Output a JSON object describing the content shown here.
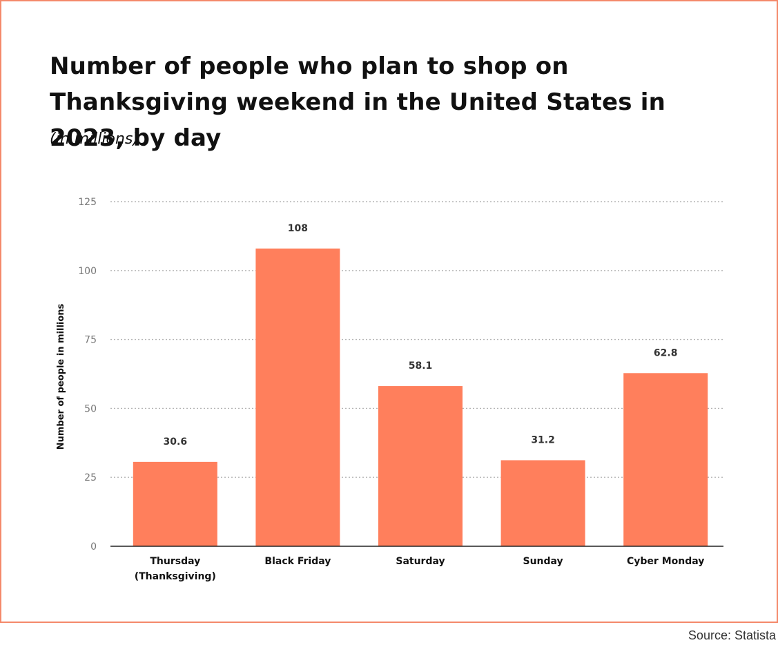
{
  "chart_data": {
    "type": "bar",
    "title": "Number of people who plan to shop on Thanksgiving weekend in the United States in 2023, by day",
    "subtitle": "(in millions)",
    "ylabel": "Number of people in millions",
    "xlabel": "",
    "categories": [
      "Thursday\n(Thanksgiving)",
      "Black Friday",
      "Saturday",
      "Sunday",
      "Cyber Monday"
    ],
    "values": [
      30.6,
      108,
      58.1,
      31.2,
      62.8
    ],
    "value_labels": [
      "30.6",
      "108",
      "58.1",
      "31.2",
      "62.8"
    ],
    "yticks": [
      0,
      25,
      50,
      75,
      100,
      125
    ],
    "ylim": [
      0,
      125
    ],
    "grid": true,
    "legend": "none",
    "bar_color": "#ff7f5c"
  },
  "source": "Source: Statista",
  "colors": {
    "frame": "#f4896b",
    "bar": "#ff7f5c"
  }
}
